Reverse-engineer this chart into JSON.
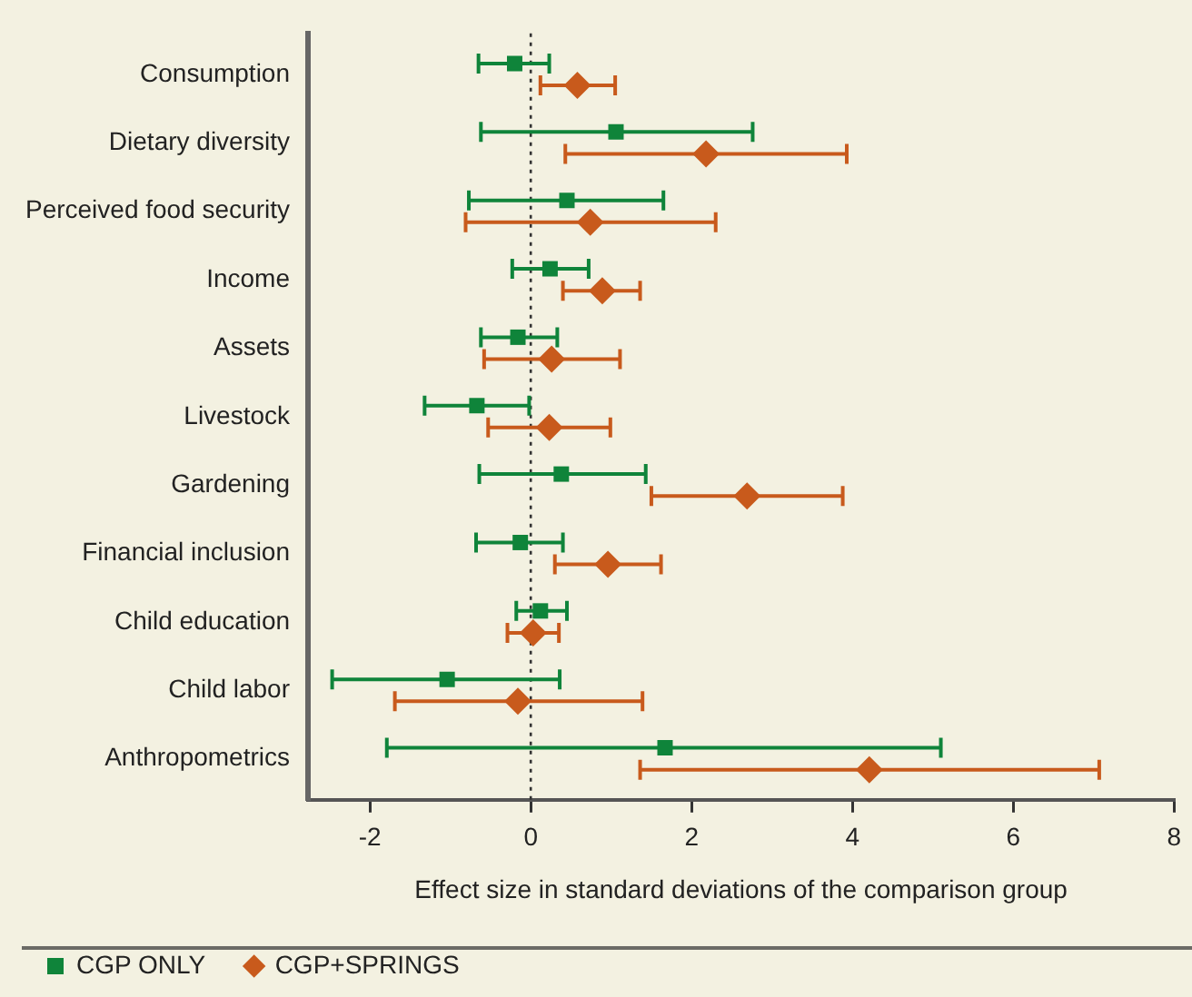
{
  "chart_data": {
    "type": "scatter",
    "orientation": "horizontal",
    "xlabel": "Effect size in standard deviations of the comparison group",
    "categories": [
      "Consumption",
      "Dietary diversity",
      "Perceived food security",
      "Income",
      "Assets",
      "Livestock",
      "Gardening",
      "Financial inclusion",
      "Child education",
      "Child labor",
      "Anthropometrics"
    ],
    "xlim": [
      -2.77,
      8
    ],
    "xticks": [
      -2,
      0,
      2,
      4,
      6,
      8
    ],
    "grid": false,
    "legend": "bottom left",
    "ref_lines": [
      {
        "axis": "x",
        "value": 0,
        "line_style": "dotted",
        "color": "#333333"
      }
    ],
    "series": [
      {
        "name": "CGP ONLY",
        "color": "#0f843a",
        "marker": "square",
        "values": [
          -0.2,
          1.06,
          0.45,
          0.24,
          -0.16,
          -0.67,
          0.38,
          -0.13,
          0.12,
          -1.04,
          1.67
        ],
        "errors": [
          [
            -0.65,
            0.23
          ],
          [
            -0.62,
            2.76
          ],
          [
            -0.77,
            1.65
          ],
          [
            -0.23,
            0.72
          ],
          [
            -0.62,
            0.33
          ],
          [
            -1.32,
            -0.02
          ],
          [
            -0.64,
            1.43
          ],
          [
            -0.68,
            0.4
          ],
          [
            -0.18,
            0.45
          ],
          [
            -2.47,
            0.36
          ],
          [
            -1.79,
            5.1
          ]
        ]
      },
      {
        "name": "CGP+SPRINGS",
        "color": "#c85a1c",
        "marker": "diamond",
        "values": [
          0.58,
          2.18,
          0.74,
          0.89,
          0.26,
          0.23,
          2.69,
          0.96,
          0.03,
          -0.16,
          4.21
        ],
        "errors": [
          [
            0.12,
            1.05
          ],
          [
            0.43,
            3.93
          ],
          [
            -0.81,
            2.3
          ],
          [
            0.4,
            1.36
          ],
          [
            -0.58,
            1.11
          ],
          [
            -0.53,
            0.99
          ],
          [
            1.5,
            3.88
          ],
          [
            0.3,
            1.62
          ],
          [
            -0.29,
            0.35
          ],
          [
            -1.69,
            1.39
          ],
          [
            1.36,
            7.07
          ]
        ]
      }
    ]
  }
}
